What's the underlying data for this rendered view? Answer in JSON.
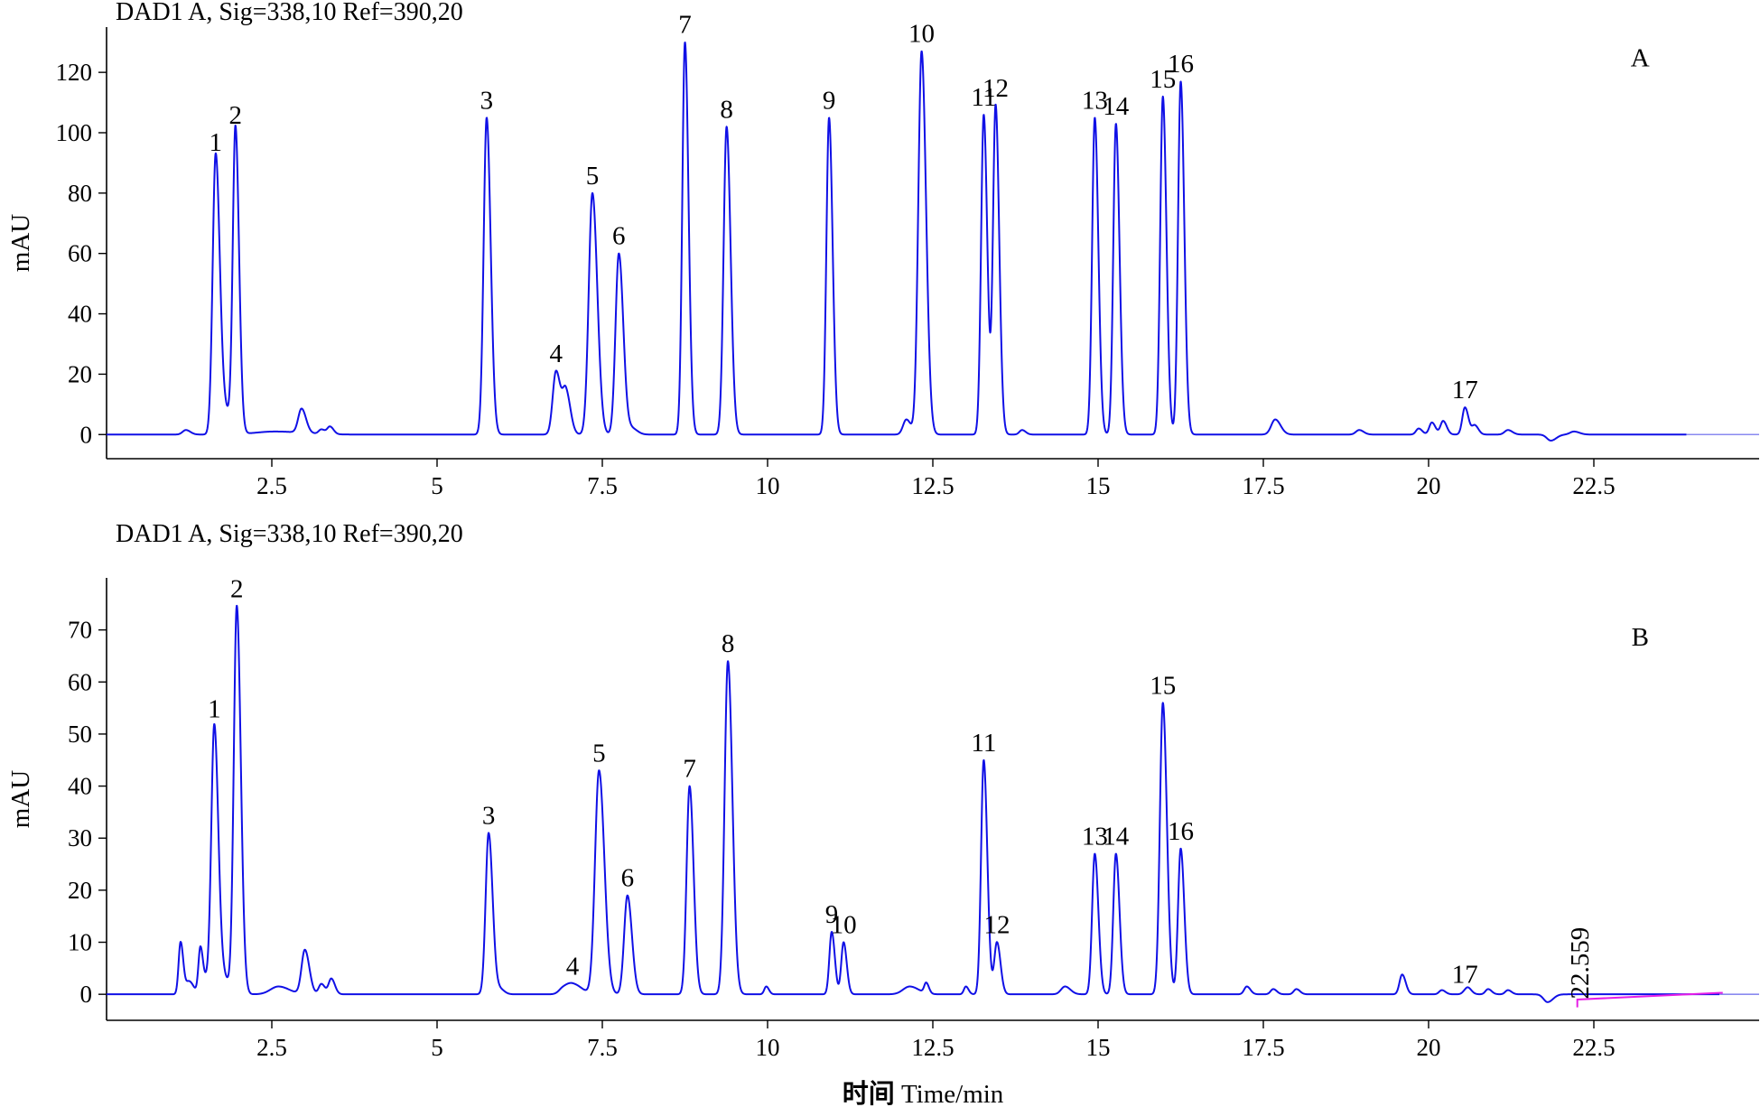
{
  "figure": {
    "xlabel_cn": "时间",
    "xlabel_en": " Time/min"
  },
  "chart_data": [
    {
      "type": "line",
      "panel": "A",
      "title": "DAD1 A, Sig=338,10 Ref=390,20",
      "ylabel": "mAU",
      "xlim": [
        0,
        25
      ],
      "ylim": [
        -8,
        135
      ],
      "x_ticks": [
        2.5,
        5.0,
        7.5,
        10.0,
        12.5,
        15.0,
        17.5,
        20.0,
        22.5
      ],
      "y_ticks": [
        0,
        20,
        40,
        60,
        80,
        100,
        120
      ],
      "grid": false,
      "trace_color": "#1010e6",
      "trace_end_x": 23.9,
      "peaks": [
        {
          "label": "1",
          "rt": 1.65,
          "height": 91,
          "width": 0.045
        },
        {
          "label": "2",
          "rt": 1.95,
          "height": 100,
          "width": 0.04
        },
        {
          "label": "3",
          "rt": 5.75,
          "height": 105,
          "width": 0.045
        },
        {
          "label": "4",
          "rt": 6.8,
          "height": 21,
          "width": 0.05
        },
        {
          "label": "5",
          "rt": 7.35,
          "height": 80,
          "width": 0.055
        },
        {
          "label": "6",
          "rt": 7.75,
          "height": 60,
          "width": 0.05
        },
        {
          "label": "7",
          "rt": 8.75,
          "height": 130,
          "width": 0.04
        },
        {
          "label": "8",
          "rt": 9.38,
          "height": 102,
          "width": 0.045
        },
        {
          "label": "9",
          "rt": 10.93,
          "height": 105,
          "width": 0.04
        },
        {
          "label": "10",
          "rt": 12.33,
          "height": 127,
          "width": 0.05
        },
        {
          "label": "11",
          "rt": 13.27,
          "height": 106,
          "width": 0.04
        },
        {
          "label": "12",
          "rt": 13.45,
          "height": 109,
          "width": 0.04
        },
        {
          "label": "13",
          "rt": 14.95,
          "height": 105,
          "width": 0.04
        },
        {
          "label": "14",
          "rt": 15.27,
          "height": 103,
          "width": 0.04
        },
        {
          "label": "15",
          "rt": 15.98,
          "height": 112,
          "width": 0.04
        },
        {
          "label": "16",
          "rt": 16.25,
          "height": 117,
          "width": 0.04
        },
        {
          "label": "17",
          "rt": 20.55,
          "height": 9,
          "width": 0.04
        }
      ],
      "minor_peaks": [
        {
          "rt": 1.2,
          "height": 1.5,
          "width": 0.05
        },
        {
          "rt": 1.78,
          "height": 8,
          "width": 0.08
        },
        {
          "rt": 2.55,
          "height": 1,
          "width": 0.3
        },
        {
          "rt": 2.95,
          "height": 8,
          "width": 0.05
        },
        {
          "rt": 3.25,
          "height": 1.5,
          "width": 0.04
        },
        {
          "rt": 3.38,
          "height": 2.5,
          "width": 0.04
        },
        {
          "rt": 6.95,
          "height": 14,
          "width": 0.05
        },
        {
          "rt": 7.95,
          "height": 2,
          "width": 0.06
        },
        {
          "rt": 12.1,
          "height": 5,
          "width": 0.05
        },
        {
          "rt": 13.85,
          "height": 1.5,
          "width": 0.04
        },
        {
          "rt": 17.68,
          "height": 5,
          "width": 0.06
        },
        {
          "rt": 18.95,
          "height": 1.5,
          "width": 0.05
        },
        {
          "rt": 19.85,
          "height": 2,
          "width": 0.04
        },
        {
          "rt": 20.05,
          "height": 4,
          "width": 0.04
        },
        {
          "rt": 20.22,
          "height": 4.5,
          "width": 0.04
        },
        {
          "rt": 20.7,
          "height": 3,
          "width": 0.04
        },
        {
          "rt": 21.2,
          "height": 1.5,
          "width": 0.05
        },
        {
          "rt": 21.85,
          "height": -2,
          "width": 0.06
        },
        {
          "rt": 22.2,
          "height": 1,
          "width": 0.06
        }
      ],
      "annotations": [
        {
          "text": "A",
          "x": 23.2,
          "y": 122
        }
      ]
    },
    {
      "type": "line",
      "panel": "B",
      "title": "DAD1 A, Sig=338,10 Ref=390,20",
      "ylabel": "mAU",
      "xlim": [
        0,
        25
      ],
      "ylim": [
        -5,
        80
      ],
      "x_ticks": [
        2.5,
        5.0,
        7.5,
        10.0,
        12.5,
        15.0,
        17.5,
        20.0,
        22.5
      ],
      "y_ticks": [
        0,
        10,
        20,
        30,
        40,
        50,
        60,
        70
      ],
      "grid": false,
      "trace_color": "#1010e6",
      "trace_end_x": 24.4,
      "peaks": [
        {
          "label": "1",
          "rt": 1.63,
          "height": 51.5,
          "width": 0.045
        },
        {
          "label": "2",
          "rt": 1.97,
          "height": 74.5,
          "width": 0.045
        },
        {
          "label": "3",
          "rt": 5.78,
          "height": 31,
          "width": 0.045
        },
        {
          "label": "4",
          "rt": 7.05,
          "height": 2,
          "width": 0.1
        },
        {
          "label": "5",
          "rt": 7.45,
          "height": 43,
          "width": 0.06
        },
        {
          "label": "6",
          "rt": 7.88,
          "height": 19,
          "width": 0.05
        },
        {
          "label": "7",
          "rt": 8.82,
          "height": 40,
          "width": 0.045
        },
        {
          "label": "8",
          "rt": 9.4,
          "height": 64,
          "width": 0.05
        },
        {
          "label": "9",
          "rt": 10.97,
          "height": 12,
          "width": 0.035
        },
        {
          "label": "10",
          "rt": 11.15,
          "height": 10,
          "width": 0.035
        },
        {
          "label": "11",
          "rt": 13.27,
          "height": 45,
          "width": 0.04
        },
        {
          "label": "12",
          "rt": 13.47,
          "height": 10,
          "width": 0.04
        },
        {
          "label": "13",
          "rt": 14.95,
          "height": 27,
          "width": 0.04
        },
        {
          "label": "14",
          "rt": 15.27,
          "height": 27,
          "width": 0.04
        },
        {
          "label": "15",
          "rt": 15.98,
          "height": 56,
          "width": 0.045
        },
        {
          "label": "16",
          "rt": 16.25,
          "height": 28,
          "width": 0.04
        },
        {
          "label": "17",
          "rt": 20.55,
          "height": 0.5,
          "width": 0.04
        }
      ],
      "minor_peaks": [
        {
          "rt": 1.12,
          "height": 10,
          "width": 0.03
        },
        {
          "rt": 1.25,
          "height": 2.5,
          "width": 0.05
        },
        {
          "rt": 1.42,
          "height": 9,
          "width": 0.03
        },
        {
          "rt": 1.52,
          "height": 2.5,
          "width": 0.04
        },
        {
          "rt": 1.78,
          "height": 3,
          "width": 0.06
        },
        {
          "rt": 2.6,
          "height": 1.5,
          "width": 0.12
        },
        {
          "rt": 3.0,
          "height": 8.5,
          "width": 0.05
        },
        {
          "rt": 3.25,
          "height": 2,
          "width": 0.04
        },
        {
          "rt": 3.4,
          "height": 3,
          "width": 0.04
        },
        {
          "rt": 5.95,
          "height": 1,
          "width": 0.05
        },
        {
          "rt": 6.9,
          "height": 0.8,
          "width": 0.06
        },
        {
          "rt": 9.98,
          "height": 1.5,
          "width": 0.03
        },
        {
          "rt": 12.15,
          "height": 1.5,
          "width": 0.1
        },
        {
          "rt": 12.4,
          "height": 2,
          "width": 0.03
        },
        {
          "rt": 13.0,
          "height": 1.5,
          "width": 0.03
        },
        {
          "rt": 14.5,
          "height": 1.5,
          "width": 0.06
        },
        {
          "rt": 17.25,
          "height": 1.5,
          "width": 0.04
        },
        {
          "rt": 17.65,
          "height": 1,
          "width": 0.04
        },
        {
          "rt": 18.0,
          "height": 1,
          "width": 0.04
        },
        {
          "rt": 19.6,
          "height": 3.8,
          "width": 0.04
        },
        {
          "rt": 20.2,
          "height": 0.8,
          "width": 0.04
        },
        {
          "rt": 20.6,
          "height": 1,
          "width": 0.04
        },
        {
          "rt": 20.9,
          "height": 1,
          "width": 0.04
        },
        {
          "rt": 21.2,
          "height": 0.8,
          "width": 0.04
        },
        {
          "rt": 21.8,
          "height": -1.5,
          "width": 0.06
        }
      ],
      "annotations": [
        {
          "text": "B",
          "x": 23.2,
          "y": 67
        },
        {
          "text": "22.559",
          "x": 22.42,
          "y": 6,
          "rotate": -90
        }
      ],
      "integration_marker": {
        "x_start": 22.25,
        "x_end": 24.45,
        "y_start": -1,
        "y_end": 0.3,
        "color": "#e61ee6"
      }
    }
  ]
}
